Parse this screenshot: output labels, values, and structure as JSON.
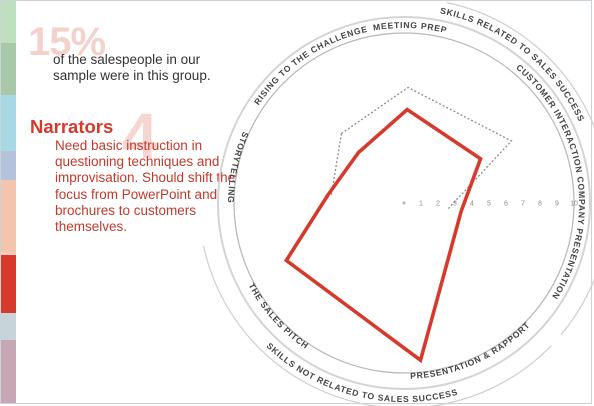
{
  "intro": {
    "percent": "15%",
    "text": "of the salespeople in our sample were in this group."
  },
  "group": {
    "number": "4",
    "title": "Narrators",
    "description": "Need basic instruction in questioning techniques and improvisation. Should shift their focus from PowerPoint and brochures to customers themselves."
  },
  "colors": {
    "group_line": "#d63a2c",
    "average_line": "#8c8c8c",
    "strip": [
      "#bfe0bf",
      "#a9c8a9",
      "#a7d8e3",
      "#b4c2db",
      "#f3c5ad",
      "#f7ccb8",
      "#d63a2c",
      "#c7d4da",
      "#c8a7b4"
    ]
  },
  "arc_labels": {
    "top": "SKILLS RELATED TO SALES SUCCESS",
    "bottom": "SKILLS NOT RELATED TO SALES SUCCESS"
  },
  "chart_data": {
    "type": "radar",
    "axes": [
      "Meeting Prep",
      "Customer Interaction",
      "Company Presentation",
      "Presentation & Rapport",
      "The Sales Pitch",
      "Storytelling",
      "Rising to the Challenge"
    ],
    "axis_labels": [
      "MEETING PREP",
      "CUSTOMER INTERACTION",
      "COMPANY PRESENTATION",
      "PRESENTATION & RAPPORT",
      "THE SALES PITCH",
      "STORYTELLING",
      "RISING TO THE CHALLENGE"
    ],
    "scale_ticks": [
      "1",
      "2",
      "3",
      "4",
      "5",
      "6",
      "7",
      "8",
      "9",
      "10"
    ],
    "scale": [
      0,
      10
    ],
    "series": [
      {
        "values": [
          5.5,
          5.2,
          3.4,
          9.3,
          7.7,
          4.5,
          4.0
        ]
      },
      {
        "values": [
          6.8,
          7.3,
          0,
          0,
          0,
          0,
          5.5
        ]
      }
    ]
  }
}
